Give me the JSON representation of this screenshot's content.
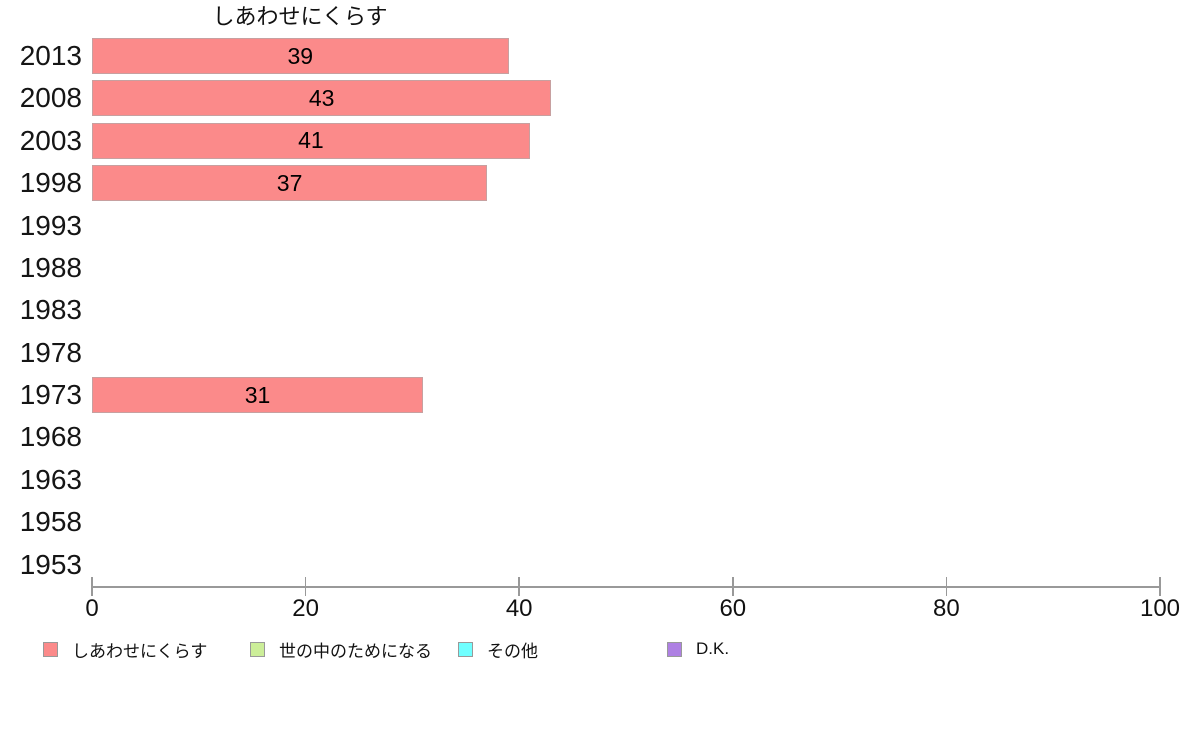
{
  "chart_data": {
    "type": "bar",
    "orientation": "horizontal",
    "title": "しあわせにくらす",
    "categories": [
      "2013",
      "2008",
      "2003",
      "1998",
      "1993",
      "1988",
      "1983",
      "1978",
      "1973",
      "1968",
      "1963",
      "1958",
      "1953"
    ],
    "values": [
      39,
      43,
      41,
      37,
      null,
      null,
      null,
      null,
      31,
      null,
      null,
      null,
      null
    ],
    "xlabel": "",
    "ylabel": "",
    "xlim": [
      0,
      100
    ],
    "x_ticks": [
      0,
      20,
      40,
      60,
      80,
      100
    ],
    "grid": false,
    "bar_color": "#fb8a8a",
    "bar_border_color": "#c7a0a0",
    "axis_color": "#999999",
    "legend_position": "bottom",
    "legend": [
      {
        "label": "しあわせにくらす",
        "color": "#fb8a8a"
      },
      {
        "label": "世の中のためになる",
        "color": "#ccee99"
      },
      {
        "label": "その他",
        "color": "#70ffff"
      },
      {
        "label": "D.K.",
        "color": "#ae80e3"
      }
    ]
  }
}
